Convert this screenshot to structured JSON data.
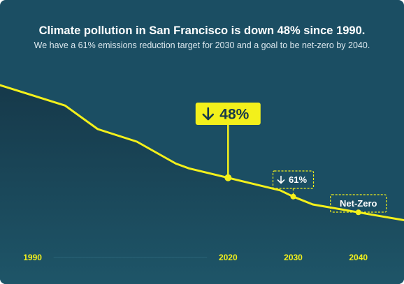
{
  "title": "Climate pollution in San Francisco is down 48% since 1990.",
  "subtitle": "We have a 61% emissions reduction target for 2030 and a goal to be net-zero by 2040.",
  "colors": {
    "background": "#1b4e63",
    "area_top": "#16394a",
    "area_bottom": "#1e5568",
    "line": "#f3f01b",
    "text": "#ffffff",
    "badge_text": "#16394a"
  },
  "chart_data": {
    "type": "line",
    "title": "Climate pollution in San Francisco is down 48% since 1990.",
    "subtitle": "We have a 61% emissions reduction target for 2030 and a goal to be net-zero by 2040.",
    "xlabel": "",
    "ylabel": "",
    "x_ticks": [
      1990,
      2020,
      2030,
      2040
    ],
    "xlim": [
      1985,
      2047
    ],
    "ylim": [
      0,
      100
    ],
    "grid": false,
    "series": [
      {
        "points": [
          [
            1985,
            100
          ],
          [
            1995,
            87
          ],
          [
            2000,
            72
          ],
          [
            2006,
            64
          ],
          [
            2012,
            50
          ],
          [
            2014,
            47
          ],
          [
            2028,
            33
          ],
          [
            2030,
            29
          ],
          [
            2033,
            24
          ],
          [
            2040,
            19
          ],
          [
            2047,
            14
          ]
        ]
      }
    ],
    "annotations": [
      {
        "x": 2020,
        "label": "48%",
        "style": "solid"
      },
      {
        "x": 2030,
        "label": "61%",
        "style": "dashed"
      },
      {
        "x": 2040,
        "label": "Net-Zero",
        "style": "dashed"
      }
    ]
  }
}
